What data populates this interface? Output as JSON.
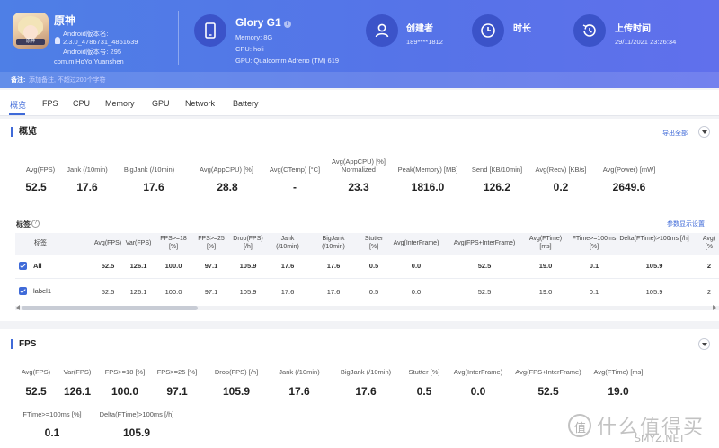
{
  "header": {
    "app": {
      "name": "原神",
      "lines": [
        "Android版本名:",
        "2.3.0_4786731_4861639",
        "Android版本号: 295",
        "com.miHoYo.Yuanshen"
      ],
      "icon_tag": "原神"
    },
    "device": {
      "name": "Glory G1",
      "info_mark": "i",
      "memory": "Memory: 8G",
      "cpu": "CPU: holi",
      "gpu": "GPU: Qualcomm Adreno (TM) 619"
    },
    "creator": {
      "label": "创建者",
      "value": "189****1812"
    },
    "duration": {
      "label": "时长",
      "value": ""
    },
    "upload": {
      "label": "上传时间",
      "value": "29/11/2021 23:26:34"
    },
    "note": {
      "label": "备注:",
      "placeholder": "添加备注, 不超过200个字符"
    }
  },
  "tabs": [
    {
      "label": "概览",
      "active": true
    },
    {
      "label": "FPS"
    },
    {
      "label": "CPU"
    },
    {
      "label": "Memory"
    },
    {
      "label": "GPU"
    },
    {
      "label": "Network"
    },
    {
      "label": "Battery"
    }
  ],
  "overview": {
    "title": "概览",
    "export_label": "导出全部",
    "stats": [
      {
        "label": "Avg(FPS)",
        "value": "52.5"
      },
      {
        "label": "Jank (/10min)",
        "value": "17.6"
      },
      {
        "label": "BigJank (/10min)",
        "value": "17.6"
      },
      {
        "label": "Avg(AppCPU) [%]",
        "value": "28.8"
      },
      {
        "label": "Avg(CTemp) [°C]",
        "value": "-"
      },
      {
        "label": "Avg(AppCPU) [%] Normalized",
        "value": "23.3"
      },
      {
        "label": "Peak(Memory) [MB]",
        "value": "1816.0"
      },
      {
        "label": "Send [KB/10min]",
        "value": "126.2"
      },
      {
        "label": "Avg(Recv) [KB/s]",
        "value": "0.2"
      },
      {
        "label": "Avg(Power) [mW]",
        "value": "2649.6"
      }
    ],
    "labels_title": "标签",
    "help_mark": "?",
    "param_link": "参数显示设置",
    "table": {
      "headers": [
        "标签",
        "Avg(FPS)",
        "Var(FPS)",
        "FPS>=18 [%]",
        "FPS>=25 [%]",
        "Drop(FPS) [/h]",
        "Jank (/10min)",
        "BigJank (/10min)",
        "Stutter [%]",
        "Avg(InterFrame)",
        "Avg(FPS+InterFrame)",
        "Avg(FTime) [ms]",
        "FTime>=100ms [%]",
        "Delta(FTime)>100ms [/h]",
        "Avg( [%"
      ],
      "rows": [
        {
          "label": "All",
          "checked": true,
          "bold": true,
          "values": [
            "52.5",
            "126.1",
            "100.0",
            "97.1",
            "105.9",
            "17.6",
            "17.6",
            "0.5",
            "0.0",
            "52.5",
            "19.0",
            "0.1",
            "105.9",
            "2"
          ]
        },
        {
          "label": "label1",
          "checked": true,
          "bold": false,
          "values": [
            "52.5",
            "126.1",
            "100.0",
            "97.1",
            "105.9",
            "17.6",
            "17.6",
            "0.5",
            "0.0",
            "52.5",
            "19.0",
            "0.1",
            "105.9",
            "2"
          ]
        }
      ]
    }
  },
  "fps_section": {
    "title": "FPS",
    "stats": [
      {
        "label": "Avg(FPS)",
        "value": "52.5"
      },
      {
        "label": "Var(FPS)",
        "value": "126.1"
      },
      {
        "label": "FPS>=18 [%]",
        "value": "100.0"
      },
      {
        "label": "FPS>=25 [%]",
        "value": "97.1"
      },
      {
        "label": "Drop(FPS) [/h]",
        "value": "105.9"
      },
      {
        "label": "Jank (/10min)",
        "value": "17.6"
      },
      {
        "label": "BigJank (/10min)",
        "value": "17.6"
      },
      {
        "label": "Stutter [%]",
        "value": "0.5"
      },
      {
        "label": "Avg(InterFrame)",
        "value": "0.0"
      },
      {
        "label": "Avg(FPS+InterFrame)",
        "value": "52.5"
      },
      {
        "label": "Avg(FTime) [ms]",
        "value": "19.0"
      },
      {
        "label": "FTime>=100ms [%]",
        "value": "0.1"
      },
      {
        "label": "Delta(FTime)>100ms [/h]",
        "value": "105.9"
      }
    ]
  },
  "watermark": {
    "logo_char": "值",
    "text": "什么值得买",
    "sub": "SMYZ.NET"
  },
  "colors": {
    "header_start": "#4e7fe6",
    "header_end": "#6070ec",
    "accent": "#3f6ad8",
    "icon_circle": "#3b53c9"
  }
}
